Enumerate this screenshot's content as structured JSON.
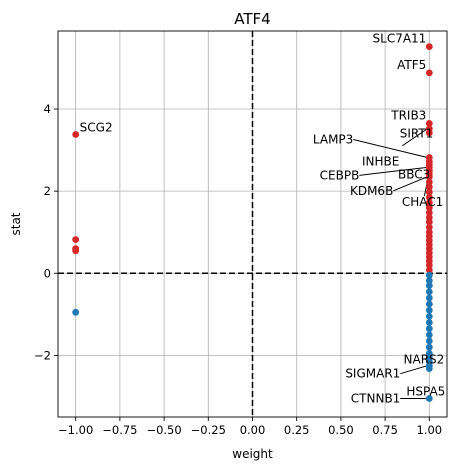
{
  "chart_data": {
    "type": "scatter",
    "title": "ATF4",
    "xlabel": "weight",
    "ylabel": "stat",
    "xlim": [
      -1.1,
      1.1
    ],
    "ylim": [
      -3.5,
      5.9
    ],
    "grid": true,
    "x_ticks": [
      -1.0,
      -0.75,
      -0.5,
      -0.25,
      0.0,
      0.25,
      0.5,
      0.75,
      1.0
    ],
    "x_tick_labels": [
      "−1.00",
      "−0.75",
      "−0.50",
      "−0.25",
      "0.00",
      "0.25",
      "0.50",
      "0.75",
      "1.00"
    ],
    "y_ticks": [
      -2,
      0,
      2,
      4
    ],
    "y_tick_labels": [
      "−2",
      "0",
      "2",
      "4"
    ],
    "reference_lines": [
      {
        "axis": "x",
        "value": 0
      },
      {
        "axis": "y",
        "value": 0
      }
    ],
    "colors": {
      "positive": "#d62728",
      "negative": "#1f77b4"
    },
    "points": [
      {
        "x": -1.0,
        "y": 3.38,
        "label": "SCG2"
      },
      {
        "x": -1.0,
        "y": 0.82
      },
      {
        "x": -1.0,
        "y": 0.6
      },
      {
        "x": -1.0,
        "y": 0.55
      },
      {
        "x": -1.0,
        "y": -0.95
      },
      {
        "x": 1.0,
        "y": 5.52,
        "label": "SLC7A11"
      },
      {
        "x": 1.0,
        "y": 4.88,
        "label": "ATF5"
      },
      {
        "x": 1.0,
        "y": 3.65,
        "label": "TRIB3"
      },
      {
        "x": 1.0,
        "y": 3.52,
        "label": "SIRT1"
      },
      {
        "x": 1.0,
        "y": 3.42
      },
      {
        "x": 1.0,
        "y": 2.82,
        "label": "LAMP3"
      },
      {
        "x": 1.0,
        "y": 2.72,
        "label": "INHBE"
      },
      {
        "x": 1.0,
        "y": 2.65
      },
      {
        "x": 1.0,
        "y": 2.58,
        "label": "CEBPB"
      },
      {
        "x": 1.0,
        "y": 2.5,
        "label": "BBC3"
      },
      {
        "x": 1.0,
        "y": 2.42
      },
      {
        "x": 1.0,
        "y": 2.35,
        "label": "KDM6B"
      },
      {
        "x": 1.0,
        "y": 2.22,
        "label": "CHAC1"
      },
      {
        "x": 1.0,
        "y": 2.1
      },
      {
        "x": 1.0,
        "y": 1.98
      },
      {
        "x": 1.0,
        "y": 1.85
      },
      {
        "x": 1.0,
        "y": 1.72
      },
      {
        "x": 1.0,
        "y": 1.6
      },
      {
        "x": 1.0,
        "y": 1.48
      },
      {
        "x": 1.0,
        "y": 1.36
      },
      {
        "x": 1.0,
        "y": 1.25
      },
      {
        "x": 1.0,
        "y": 1.12
      },
      {
        "x": 1.0,
        "y": 1.0
      },
      {
        "x": 1.0,
        "y": 0.9
      },
      {
        "x": 1.0,
        "y": 0.8
      },
      {
        "x": 1.0,
        "y": 0.7
      },
      {
        "x": 1.0,
        "y": 0.6
      },
      {
        "x": 1.0,
        "y": 0.5
      },
      {
        "x": 1.0,
        "y": 0.4
      },
      {
        "x": 1.0,
        "y": 0.3
      },
      {
        "x": 1.0,
        "y": 0.2
      },
      {
        "x": 1.0,
        "y": 0.08
      },
      {
        "x": 1.0,
        "y": -0.05
      },
      {
        "x": 1.0,
        "y": -0.18
      },
      {
        "x": 1.0,
        "y": -0.3
      },
      {
        "x": 1.0,
        "y": -0.45
      },
      {
        "x": 1.0,
        "y": -0.6
      },
      {
        "x": 1.0,
        "y": -0.75
      },
      {
        "x": 1.0,
        "y": -0.9
      },
      {
        "x": 1.0,
        "y": -1.05
      },
      {
        "x": 1.0,
        "y": -1.2
      },
      {
        "x": 1.0,
        "y": -1.35
      },
      {
        "x": 1.0,
        "y": -1.5
      },
      {
        "x": 1.0,
        "y": -1.65
      },
      {
        "x": 1.0,
        "y": -1.8
      },
      {
        "x": 1.0,
        "y": -1.95
      },
      {
        "x": 1.0,
        "y": -2.05,
        "label": "NARS2"
      },
      {
        "x": 1.0,
        "y": -2.15
      },
      {
        "x": 1.0,
        "y": -2.25,
        "label": "SIGMAR1"
      },
      {
        "x": 1.0,
        "y": -2.32,
        "label": "HSPA5"
      },
      {
        "x": 1.0,
        "y": -3.05,
        "label": "CTNNB1"
      }
    ]
  }
}
